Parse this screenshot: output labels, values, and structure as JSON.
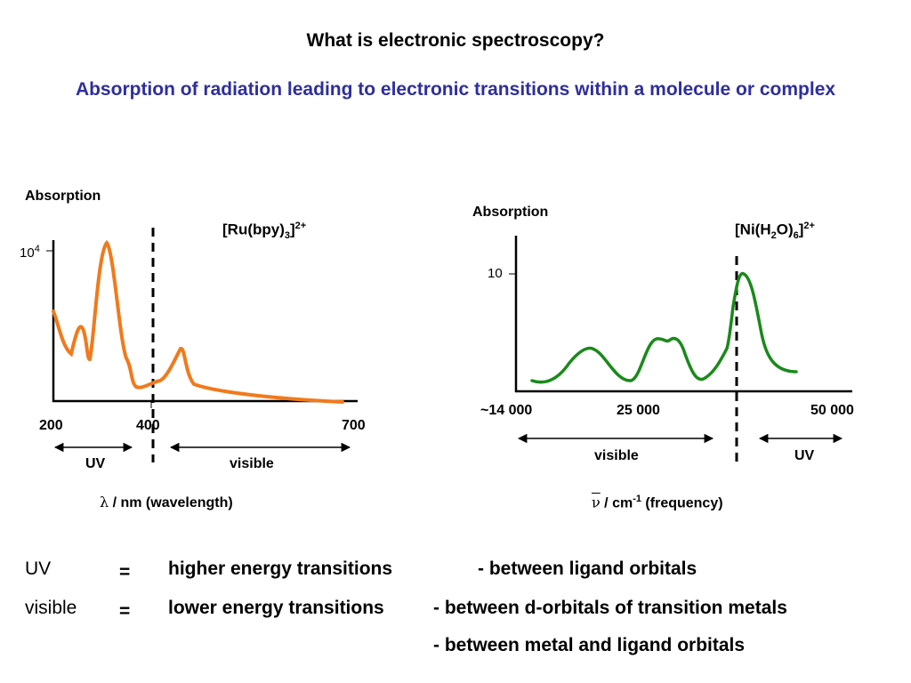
{
  "title": "What is electronic spectroscopy?",
  "subtitle": "Absorption of radiation leading to electronic transitions within a molecule or complex",
  "colors": {
    "subtitle": "#2e2e9e",
    "ru_curve": "#f07a1c",
    "ni_curve": "#1a8a1a"
  },
  "left_chart": {
    "y_label": "Absorption",
    "y_tick": {
      "base": "10",
      "exp": "4"
    },
    "complex": {
      "a": "[Ru(bpy)",
      "sub": "3",
      "b": "]",
      "sup": "2+"
    },
    "x_ticks": [
      "200",
      "400",
      "700"
    ],
    "uv_label": "UV",
    "visible_label": "visible",
    "x_symbol": "λ",
    "x_title": " / nm (wavelength)"
  },
  "right_chart": {
    "y_label": "Absorption",
    "y_tick": "10",
    "complex": {
      "a": "[Ni(H",
      "sub1": "2",
      "b": "O)",
      "sub2": "6",
      "c": "]",
      "sup": "2+"
    },
    "x_ticks": [
      "~14 000",
      "25 000",
      "50 000"
    ],
    "visible_label": "visible",
    "uv_label": "UV",
    "x_symbol": "ν",
    "x_unit": " / cm",
    "x_unit_exp": "-1",
    "x_title": " (frequency)"
  },
  "summary": [
    {
      "term": "UV",
      "eq": "=",
      "desc": "higher energy transitions",
      "detail": "- between ligand orbitals"
    },
    {
      "term": "visible",
      "eq": "=",
      "desc": "lower energy transitions",
      "detail": "- between d-orbitals of transition metals"
    },
    {
      "term": "",
      "eq": "",
      "desc": "",
      "detail": "- between metal and ligand orbitals"
    }
  ]
}
